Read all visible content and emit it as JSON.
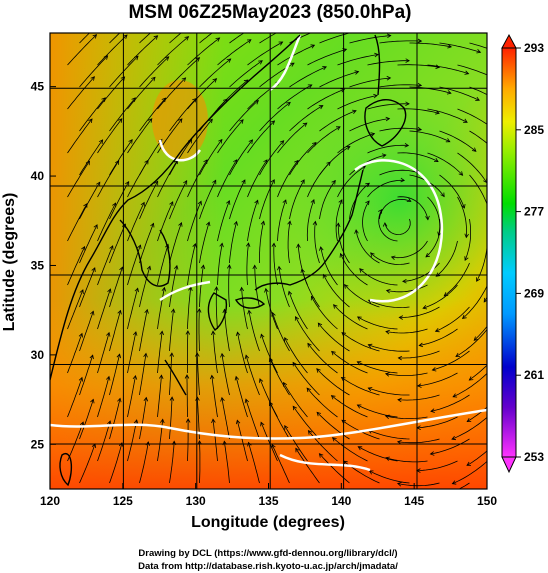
{
  "chart_data": {
    "type": "heatmap",
    "title": "MSM 06Z25May2023 (850.0hPa)",
    "xlabel": "Longitude (degrees)",
    "ylabel": "Latitude  (degrees)",
    "xlim": [
      120,
      150
    ],
    "ylim": [
      22.5,
      48
    ],
    "xticks": [
      120,
      125,
      130,
      135,
      140,
      145,
      150
    ],
    "yticks": [
      25,
      30,
      35,
      40,
      45
    ],
    "grid": true,
    "overlay": "streamlines",
    "colorbar": {
      "placement": "right",
      "ticks": [
        253,
        261,
        269,
        277,
        285,
        293
      ],
      "range": [
        253,
        293
      ],
      "colors": [
        "#ff33ff",
        "#0000cc",
        "#00ccff",
        "#00dd00",
        "#eeee00",
        "#ff2200"
      ]
    },
    "cyclone_center": {
      "lon": 144,
      "lat": 37.5
    }
  },
  "credits": {
    "line1": "Drawing by DCL (https://www.gfd-dennou.org/library/dcl/)",
    "line2": "Data from http://database.rish.kyoto-u.ac.jp/arch/jmadata/"
  }
}
